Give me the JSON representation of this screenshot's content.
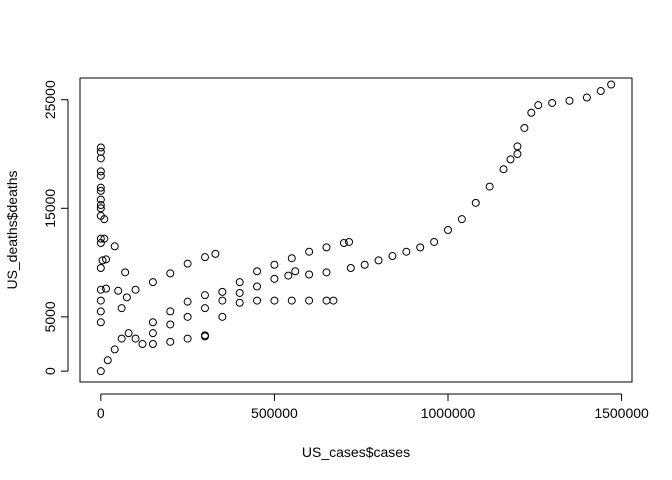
{
  "chart_data": {
    "type": "scatter",
    "title": "",
    "xlabel": "US_cases$cases",
    "ylabel": "US_deaths$deaths",
    "xlim": [
      -60000,
      1530000
    ],
    "ylim": [
      -1000,
      27000
    ],
    "x_ticks": [
      0,
      500000,
      1000000,
      1500000
    ],
    "x_tick_labels": [
      "0",
      "500000",
      "1000000",
      "1500000"
    ],
    "y_ticks": [
      0,
      5000,
      15000,
      25000
    ],
    "y_tick_labels": [
      "0",
      "5000",
      "15000",
      "25000"
    ],
    "marker": "open-circle",
    "grid": false,
    "legend": "none",
    "series": [
      {
        "points": [
          [
            0,
            20600
          ],
          [
            0,
            20200
          ],
          [
            0,
            19600
          ],
          [
            0,
            18400
          ],
          [
            0,
            18000
          ],
          [
            0,
            16900
          ],
          [
            0,
            16600
          ],
          [
            0,
            15800
          ],
          [
            0,
            15300
          ],
          [
            0,
            15000
          ],
          [
            0,
            14300
          ],
          [
            0,
            12200
          ],
          [
            0,
            11800
          ],
          [
            0,
            9500
          ],
          [
            0,
            7500
          ],
          [
            0,
            6500
          ],
          [
            0,
            5500
          ],
          [
            0,
            4500
          ],
          [
            10000,
            14000
          ],
          [
            10000,
            12200
          ],
          [
            5000,
            10200
          ],
          [
            15000,
            10300
          ],
          [
            15000,
            7600
          ],
          [
            40000,
            11500
          ],
          [
            70000,
            9100
          ],
          [
            50000,
            7400
          ],
          [
            60000,
            5800
          ],
          [
            75000,
            6800
          ],
          [
            100000,
            7500
          ],
          [
            150000,
            8200
          ],
          [
            200000,
            9000
          ],
          [
            250000,
            9900
          ],
          [
            300000,
            10500
          ],
          [
            330000,
            10800
          ],
          [
            150000,
            4500
          ],
          [
            200000,
            5500
          ],
          [
            250000,
            6400
          ],
          [
            300000,
            7000
          ],
          [
            350000,
            7300
          ],
          [
            400000,
            8200
          ],
          [
            450000,
            9200
          ],
          [
            500000,
            9800
          ],
          [
            550000,
            10400
          ],
          [
            600000,
            11000
          ],
          [
            650000,
            11400
          ],
          [
            700000,
            11800
          ],
          [
            715000,
            11900
          ],
          [
            150000,
            3500
          ],
          [
            200000,
            4300
          ],
          [
            250000,
            5000
          ],
          [
            300000,
            5800
          ],
          [
            350000,
            6500
          ],
          [
            400000,
            7200
          ],
          [
            450000,
            7800
          ],
          [
            500000,
            8500
          ],
          [
            540000,
            8800
          ],
          [
            560000,
            9200
          ],
          [
            600000,
            8900
          ],
          [
            650000,
            9100
          ],
          [
            300000,
            3300
          ],
          [
            350000,
            5000
          ],
          [
            400000,
            6300
          ],
          [
            450000,
            6500
          ],
          [
            500000,
            6500
          ],
          [
            550000,
            6500
          ],
          [
            600000,
            6500
          ],
          [
            650000,
            6500
          ],
          [
            670000,
            6500
          ],
          [
            720000,
            9500
          ],
          [
            760000,
            9800
          ],
          [
            800000,
            10200
          ],
          [
            840000,
            10600
          ],
          [
            880000,
            11000
          ],
          [
            920000,
            11400
          ],
          [
            960000,
            11900
          ],
          [
            1000000,
            13000
          ],
          [
            1040000,
            14000
          ],
          [
            1080000,
            15500
          ],
          [
            1120000,
            17000
          ],
          [
            1160000,
            18600
          ],
          [
            1180000,
            19500
          ],
          [
            1200000,
            20000
          ],
          [
            1200000,
            20700
          ],
          [
            1220000,
            22400
          ],
          [
            1240000,
            23800
          ],
          [
            1260000,
            24500
          ],
          [
            1300000,
            24700
          ],
          [
            1350000,
            24900
          ],
          [
            1400000,
            25200
          ],
          [
            1440000,
            25800
          ],
          [
            1470000,
            26400
          ],
          [
            0,
            0
          ],
          [
            20000,
            1000
          ],
          [
            40000,
            2000
          ],
          [
            60000,
            3000
          ],
          [
            80000,
            3500
          ],
          [
            100000,
            3000
          ],
          [
            120000,
            2500
          ],
          [
            150000,
            2500
          ],
          [
            200000,
            2700
          ],
          [
            250000,
            3000
          ],
          [
            300000,
            3200
          ]
        ]
      }
    ]
  }
}
